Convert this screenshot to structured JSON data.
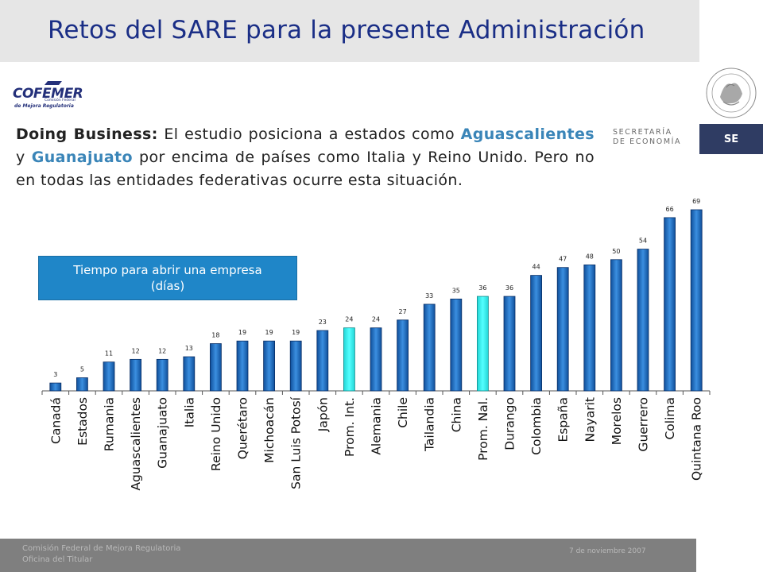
{
  "header": {
    "title": "Retos del SARE para la presente Administración"
  },
  "logos": {
    "cofemer_main": "COFEMER",
    "cofemer_line1": "Comisión Federal",
    "cofemer_line2": "de Mejora Regulatoria",
    "secretaria_line1": "SECRETARÍA",
    "secretaria_line2": "DE ECONOMÍA",
    "se_badge": "SE"
  },
  "intro": {
    "lead": "Doing Business:",
    "t1": " El estudio posiciona a estados como ",
    "state1": "Aguascalientes",
    "t2": " y ",
    "state2": "Guanajuato",
    "t3": " por encima de países como Italia y Reino Unido. Pero no en todas las entidades federativas ocurre esta situación."
  },
  "chart_box": {
    "line1": "Tiempo para abrir una empresa",
    "line2": "(días)"
  },
  "colors": {
    "title": "#1a2e86",
    "bar_normal": "#1f73c8",
    "bar_highlight": "#33ffff",
    "label_box": "#1f86c8",
    "footer": "#7f7f7f"
  },
  "chart_data": {
    "type": "bar",
    "title": "Tiempo para abrir una empresa (días)",
    "categories": [
      "Canadá",
      "Estados",
      "Rumania",
      "Aguascalientes",
      "Guanajuato",
      "Italia",
      "Reino Unido",
      "Querétaro",
      "Michoacán",
      "San Luis Potosí",
      "Japón",
      "Prom. Int.",
      "Alemania",
      "Chile",
      "Tailandia",
      "China",
      "Prom. Nal.",
      "Durango",
      "Colombia",
      "España",
      "Nayarit",
      "Morelos",
      "Guerrero",
      "Colima",
      "Quintana Roo"
    ],
    "values": [
      3,
      5,
      11,
      12,
      12,
      13,
      18,
      19,
      19,
      19,
      23,
      24,
      24,
      27,
      33,
      35,
      36,
      36,
      44,
      47,
      48,
      50,
      54,
      66,
      69
    ],
    "highlighted": [
      "Prom. Int.",
      "Prom. Nal."
    ],
    "ylim": [
      0,
      69
    ],
    "grid": false,
    "legend": "none"
  },
  "footer": {
    "line1": "Comisión Federal de Mejora Regulatoria",
    "line2": "Oficina del Titular",
    "date": "7 de noviembre 2007"
  }
}
